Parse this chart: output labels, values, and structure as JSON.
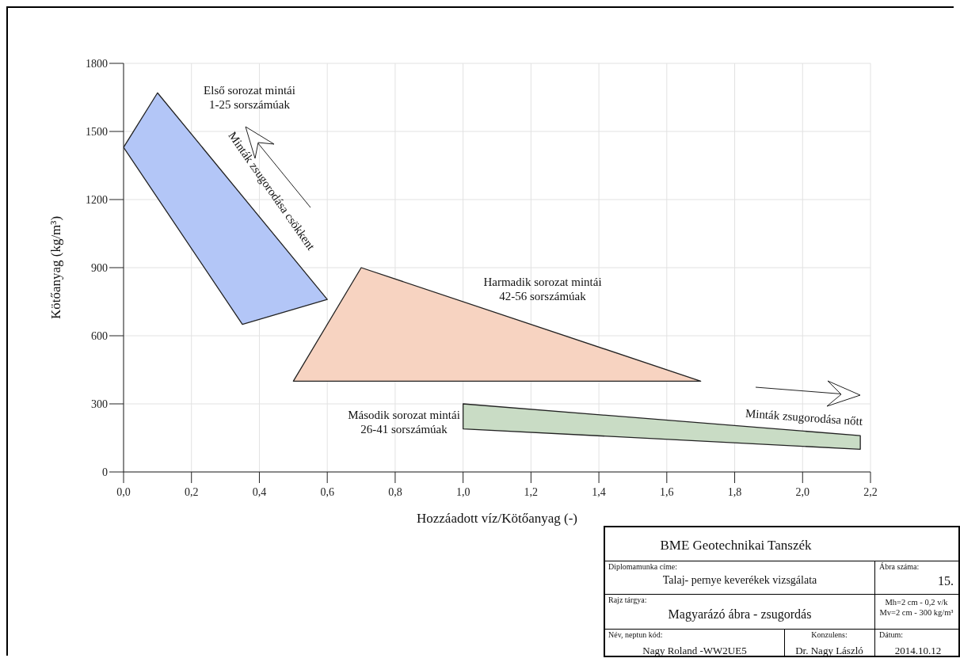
{
  "chart_data": {
    "type": "area",
    "xlabel": "Hozzáadott víz/Kötőanyag (-)",
    "ylabel": "Kötőanyag (kg/m³)",
    "series": [
      {
        "x": [
          0,
          0.1,
          0.6,
          0.35
        ],
        "values": [
          1430,
          1670,
          760,
          650
        ],
        "color": "#b3c6f7"
      },
      {
        "x": [
          0.5,
          0.7,
          1.7
        ],
        "values": [
          400,
          900,
          400
        ],
        "color": "#f7d3c1"
      },
      {
        "x": [
          1.0,
          2.17,
          2.17,
          1.0
        ],
        "values": [
          300,
          160,
          100,
          190
        ],
        "color": "#c9dcc5"
      }
    ],
    "xlim": [
      0,
      2.2
    ],
    "xticks": [
      {
        "value": 0,
        "label": "0,0"
      },
      {
        "value": 0.2,
        "label": "0,2"
      },
      {
        "value": 0.4,
        "label": "0,4"
      },
      {
        "value": 0.6,
        "label": "0,6"
      },
      {
        "value": 0.8,
        "label": "0,8"
      },
      {
        "value": 1.0,
        "label": "1,0"
      },
      {
        "value": 1.2,
        "label": "1,2"
      },
      {
        "value": 1.4,
        "label": "1,4"
      },
      {
        "value": 1.6,
        "label": "1,6"
      },
      {
        "value": 1.8,
        "label": "1,8"
      },
      {
        "value": 2.0,
        "label": "2,0"
      },
      {
        "value": 2.2,
        "label": "2,2"
      }
    ],
    "ylim": [
      0,
      1800
    ],
    "yticks": [
      0,
      300,
      600,
      900,
      1200,
      1500,
      1800
    ],
    "grid": true,
    "annotations": [
      "Első sorozat mintái\n1-25 sorszámúak",
      "Minták zsugorodása csökkent",
      "Harmadik sorozat mintái\n42-56 sorszámúak",
      "Második sorozat mintái\n26-41 sorszámúak",
      "Minták zsugorodása nőtt",
      "BME Geotechnikai Tanszék",
      "Diplomamunka címe:",
      "Talaj- pernye keverékek vizsgálata",
      "Ábra száma:",
      "15.",
      "Rajz tárgya:",
      "Magyarázó ábra - zsugordás",
      "Mh=2 cm - 0,2 v/k\nMv=2 cm - 300 kg/m³",
      "Név, neptun kód:",
      "Nagy Roland -WW2UE5",
      "Konzulens:",
      "Dr. Nagy László",
      "Dátum:",
      "2014.10.12"
    ]
  }
}
